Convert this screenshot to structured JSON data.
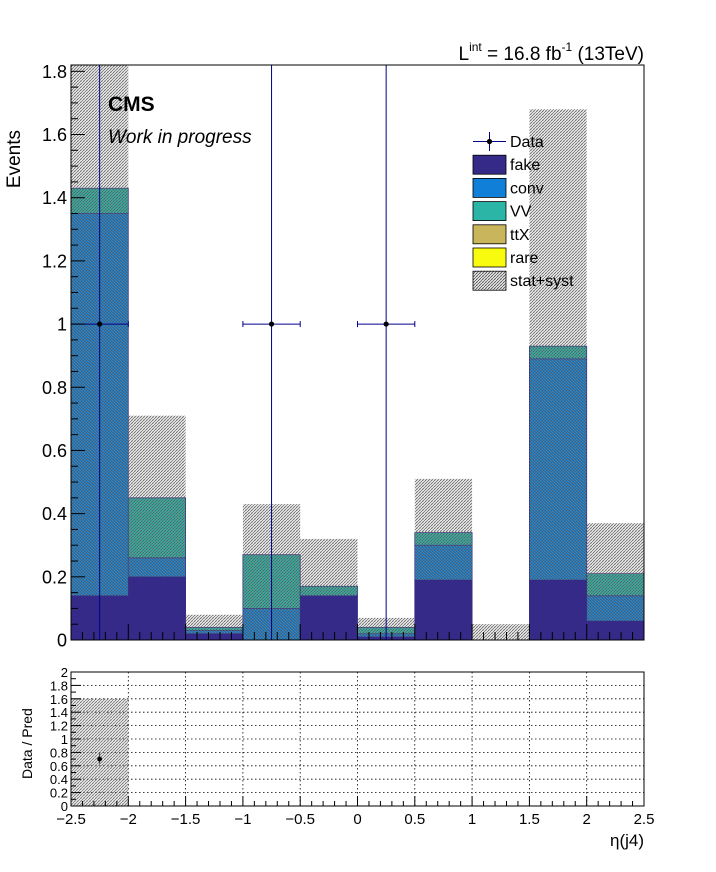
{
  "lumi": {
    "prefix": "L",
    "superscript": "int",
    "middle": " = 16.8 fb",
    "exponent": "-1",
    "suffix": " (13TeV)"
  },
  "cms_label": "CMS",
  "cms_sublabel": "Work in progress",
  "colors": {
    "fake": "#352a87",
    "conv": "#0f7fd8",
    "VV": "#2ab5a6",
    "ttX": "#c9b55b",
    "rare": "#f9fb0e",
    "frame": "#000000",
    "data": "#000000",
    "error_line": "#00008b"
  },
  "chart_data": [
    {
      "type": "bar",
      "stacked": true,
      "ylabel": "Events",
      "xlim": [
        -2.5,
        2.5
      ],
      "ylim": [
        0,
        1.82
      ],
      "yticks": [
        0,
        0.2,
        0.4,
        0.6,
        0.8,
        1,
        1.2,
        1.4,
        1.6,
        1.8
      ],
      "bin_edges": [
        -2.5,
        -2.0,
        -1.5,
        -1.0,
        -0.5,
        0.0,
        0.5,
        1.0,
        1.5,
        2.0,
        2.5
      ],
      "series": [
        {
          "name": "fake",
          "values": [
            0.14,
            0.2,
            0.02,
            0.0,
            0.14,
            0.01,
            0.19,
            0.0,
            0.19,
            0.06
          ]
        },
        {
          "name": "conv",
          "values": [
            1.21,
            0.06,
            0.01,
            0.1,
            0.0,
            0.01,
            0.11,
            0.0,
            0.7,
            0.08
          ]
        },
        {
          "name": "VV",
          "values": [
            0.08,
            0.19,
            0.01,
            0.17,
            0.03,
            0.02,
            0.04,
            0.0,
            0.04,
            0.07
          ]
        },
        {
          "name": "ttX",
          "values": [
            0.0,
            0.0,
            0.0,
            0.0,
            0.0,
            0.0,
            0.0,
            0.0,
            0.0,
            0.0
          ]
        },
        {
          "name": "rare",
          "values": [
            0.0,
            0.0,
            0.0,
            0.0,
            0.0,
            0.0,
            0.0,
            0.0,
            0.0,
            0.0
          ]
        }
      ],
      "uncertainty": {
        "name": "stat+syst",
        "low": [
          0.14,
          0.2,
          0.02,
          0.0,
          0.14,
          0.01,
          0.19,
          0.0,
          0.19,
          0.06
        ],
        "high": [
          1.82,
          0.71,
          0.08,
          0.43,
          0.32,
          0.07,
          0.51,
          0.05,
          1.68,
          0.37
        ]
      },
      "data": {
        "name": "Data",
        "points": [
          {
            "x": -2.25,
            "y": 1,
            "xerr": 0.25,
            "ylow": 0,
            "yhigh": 1.82
          },
          {
            "x": -0.75,
            "y": 1,
            "xerr": 0.25,
            "ylow": 0,
            "yhigh": 1.82
          },
          {
            "x": 0.25,
            "y": 1,
            "xerr": 0.25,
            "ylow": 0,
            "yhigh": 1.82
          }
        ]
      },
      "legend": {
        "placement": "top-right",
        "entries": [
          "Data",
          "fake",
          "conv",
          "VV",
          "ttX",
          "rare",
          "stat+syst"
        ]
      }
    },
    {
      "type": "scatter",
      "xlabel": "η(j4)",
      "ylabel": "Data / Pred",
      "xlim": [
        -2.5,
        2.5
      ],
      "ylim": [
        0,
        2
      ],
      "grid": true,
      "xticks": [
        -2.5,
        -2,
        -1.5,
        -1,
        -0.5,
        0,
        0.5,
        1,
        1.5,
        2,
        2.5
      ],
      "xtick_labels": [
        "−2.5",
        "−2",
        "−1.5",
        "−1",
        "−0.5",
        "0",
        "0.5",
        "1",
        "1.5",
        "2",
        "2.5"
      ],
      "yticks": [
        0,
        0.2,
        0.4,
        0.6,
        0.8,
        1,
        1.2,
        1.4,
        1.6,
        1.8,
        2
      ],
      "uncertainty_band": [
        {
          "x_low": -2.5,
          "x_high": -2.0,
          "low": 0,
          "high": 1.6
        }
      ],
      "points": [
        {
          "x": -2.25,
          "y": 0.7,
          "ylow": 0.63,
          "yhigh": 0.79
        }
      ]
    }
  ]
}
